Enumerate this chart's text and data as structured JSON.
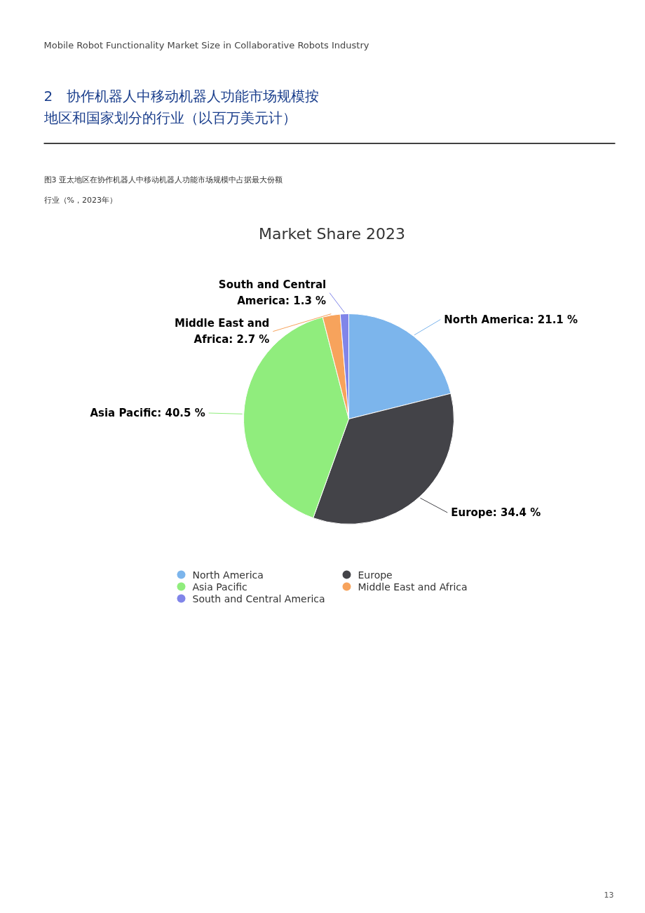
{
  "chart_data": {
    "type": "pie",
    "title": "Market Share 2023",
    "subtitle": "2　协作机器人中移动机器人功能市场规模按地区和国家划分的行业（以百万美元计）",
    "categories": [
      "North America",
      "Europe",
      "Asia Pacific",
      "Middle East and Africa",
      "South and Central America"
    ],
    "values": [
      21.1,
      34.4,
      40.5,
      2.7,
      1.3
    ],
    "colors": [
      "#7cb5ec",
      "#434348",
      "#90ed7d",
      "#f7a35c",
      "#8085e9"
    ],
    "value_labels": [
      "North America: 21.1 %",
      "Europe: 34.4 %",
      "Asia Pacific: 40.5 %",
      "Middle East and Africa: 2.7 %",
      "South and Central America: 1.3 %"
    ],
    "legend": "bottom",
    "annotations": [
      "Mobile Robot Functionality Market Size in Collaborative Robots Industry",
      "图3 亚太地区在协作机器人中移动机器人功能市场规模中占据最大份额",
      "行业（%，2023年）",
      "13"
    ]
  }
}
